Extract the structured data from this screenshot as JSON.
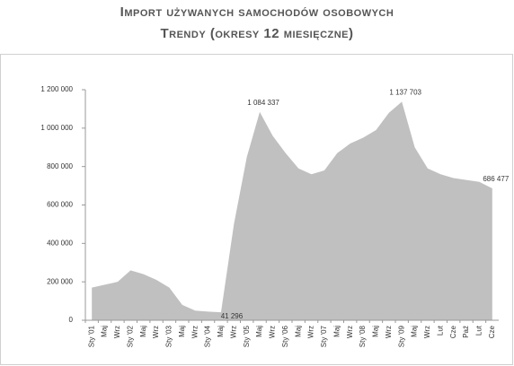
{
  "chart_data": {
    "type": "area",
    "title": "Import używanych samochodów osobowych",
    "subtitle": "Trendy (okresy 12 miesięczne)",
    "categories": [
      "Sty '01",
      "Maj",
      "Wrz",
      "Sty '02",
      "Maj",
      "Wrz",
      "Sty '03",
      "Maj",
      "Wrz",
      "Sty '04",
      "Maj",
      "Wrz",
      "Sty '05",
      "Maj",
      "Wrz",
      "Sty '06",
      "Maj",
      "Wrz",
      "Sty '07",
      "Maj",
      "Wrz",
      "Sty '08",
      "Maj",
      "Wrz",
      "Sty '09",
      "Maj",
      "Wrz",
      "Lut",
      "Cze",
      "Paź",
      "Lut",
      "Cze"
    ],
    "values": [
      170000,
      185000,
      200000,
      260000,
      240000,
      210000,
      170000,
      80000,
      50000,
      45000,
      41296,
      500000,
      850000,
      1084337,
      960000,
      870000,
      790000,
      760000,
      780000,
      870000,
      920000,
      950000,
      990000,
      1080000,
      1137703,
      900000,
      790000,
      760000,
      740000,
      730000,
      720000,
      686477
    ],
    "value_labels": [
      null,
      null,
      null,
      null,
      null,
      null,
      null,
      null,
      null,
      null,
      "41 296",
      null,
      null,
      "1 084 337",
      null,
      null,
      null,
      null,
      null,
      null,
      null,
      null,
      null,
      null,
      "1 137 703",
      null,
      null,
      null,
      null,
      null,
      null,
      "686 477"
    ],
    "color": "#c0c0c0",
    "ylim": [
      0,
      1200000
    ],
    "yticks": [
      0,
      {
        "value": 200000,
        "label": "200 000"
      },
      {
        "value": 400000,
        "label": "400 000"
      },
      {
        "value": 600000,
        "label": "600 000"
      },
      {
        "value": 800000,
        "label": "800 000"
      },
      {
        "value": 1000000,
        "label": "1 000 000"
      },
      {
        "value": 1200000,
        "label": "1 200 000"
      }
    ]
  }
}
